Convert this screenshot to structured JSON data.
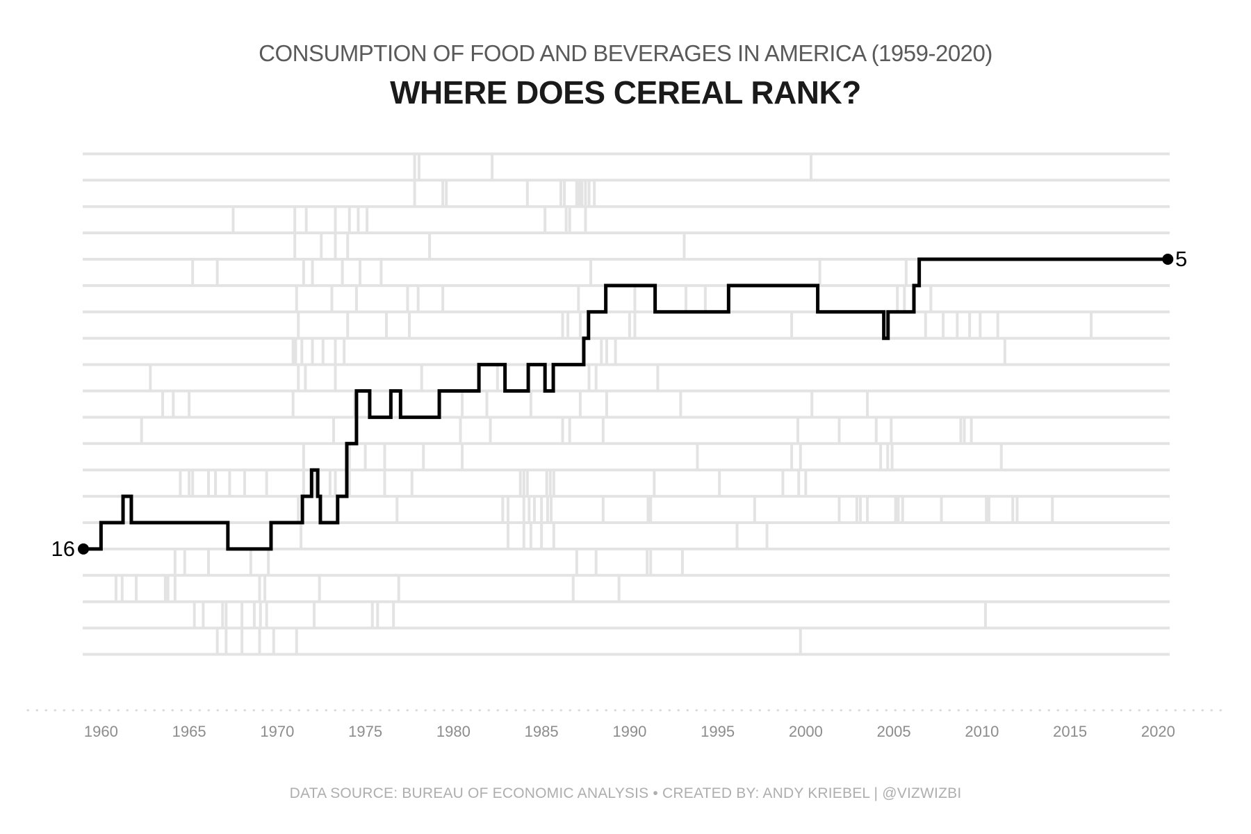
{
  "header": {
    "title": "CONSUMPTION OF FOOD AND BEVERAGES IN AMERICA (1959-2020)",
    "subtitle": "WHERE DOES CEREAL RANK?"
  },
  "footer": {
    "credit": "DATA SOURCE: BUREAU OF ECONOMIC ANALYSIS  •  CREATED BY: ANDY KRIEBEL | @VIZWIZBI"
  },
  "chart_data": {
    "type": "line",
    "subtype": "step-rank-bump",
    "title": "CONSUMPTION OF FOOD AND BEVERAGES IN AMERICA (1959-2020)",
    "subtitle": "WHERE DOES CEREAL RANK?",
    "xlabel": "",
    "ylabel": "rank (1 = top, hidden axis)",
    "x_axis": {
      "range": [
        1958.95,
        2021.1
      ],
      "ticks": [
        1960,
        1965,
        1970,
        1975,
        1980,
        1985,
        1990,
        1995,
        2000,
        2005,
        2010,
        2015,
        2020
      ],
      "dotted_baseline": true
    },
    "y_axis": {
      "type": "rank",
      "min": 1,
      "max": 20,
      "inverted": true,
      "labels_hidden": true,
      "gridlines": true
    },
    "legend": "none",
    "series": [
      {
        "name": "Cereal",
        "color": "#000000",
        "start_year": 1959,
        "start_rank": 16,
        "start_label": "16",
        "end_year": 2020.55,
        "end_rank": 5,
        "end_label": "5",
        "breakpoints": [
          [
            1959.0,
            16
          ],
          [
            1960.0,
            15
          ],
          [
            1961.25,
            14
          ],
          [
            1961.72,
            15
          ],
          [
            1967.2,
            16
          ],
          [
            1969.65,
            15
          ],
          [
            1971.43,
            14
          ],
          [
            1971.95,
            13
          ],
          [
            1972.3,
            14
          ],
          [
            1972.45,
            15
          ],
          [
            1973.43,
            14
          ],
          [
            1973.95,
            12
          ],
          [
            1974.5,
            10
          ],
          [
            1975.25,
            11
          ],
          [
            1976.45,
            10
          ],
          [
            1977.0,
            11
          ],
          [
            1979.2,
            10
          ],
          [
            1981.45,
            9
          ],
          [
            1982.93,
            10
          ],
          [
            1984.25,
            9
          ],
          [
            1985.2,
            10
          ],
          [
            1985.67,
            9
          ],
          [
            1987.4,
            8
          ],
          [
            1987.67,
            7
          ],
          [
            1988.65,
            6
          ],
          [
            1991.45,
            7
          ],
          [
            1995.62,
            6
          ],
          [
            2000.68,
            7
          ],
          [
            2004.43,
            8
          ],
          [
            2004.67,
            7
          ],
          [
            2006.14,
            6
          ],
          [
            2006.44,
            5
          ]
        ]
      }
    ],
    "background": {
      "description": "anonymous gray rank lattice of other food/beverage categories",
      "rows": 20,
      "verticals": [
        [
          1977.8,
          1
        ],
        [
          1978.05,
          1
        ],
        [
          1982.2,
          1
        ],
        [
          2000.3,
          1
        ],
        [
          1977.8,
          2
        ],
        [
          1979.4,
          2
        ],
        [
          1979.6,
          2
        ],
        [
          1984.2,
          2
        ],
        [
          1986.1,
          2
        ],
        [
          1986.3,
          2
        ],
        [
          1987.0,
          2
        ],
        [
          1987.15,
          2
        ],
        [
          1987.3,
          2
        ],
        [
          1987.5,
          2
        ],
        [
          1987.7,
          2
        ],
        [
          1988.0,
          2
        ],
        [
          1967.5,
          3
        ],
        [
          1971.0,
          3
        ],
        [
          1971.65,
          3
        ],
        [
          1973.3,
          3
        ],
        [
          1974.1,
          3
        ],
        [
          1974.6,
          3
        ],
        [
          1975.1,
          3
        ],
        [
          1985.2,
          3
        ],
        [
          1986.4,
          3
        ],
        [
          1986.6,
          3
        ],
        [
          1987.5,
          3
        ],
        [
          1971.0,
          4
        ],
        [
          1972.5,
          4
        ],
        [
          1973.3,
          4
        ],
        [
          1974.0,
          4
        ],
        [
          1978.65,
          4
        ],
        [
          1993.1,
          4
        ],
        [
          1965.2,
          5
        ],
        [
          1966.6,
          5
        ],
        [
          1971.5,
          5
        ],
        [
          1972.0,
          5
        ],
        [
          1973.7,
          5
        ],
        [
          1974.7,
          5
        ],
        [
          1975.9,
          5
        ],
        [
          1987.8,
          5
        ],
        [
          2000.8,
          5
        ],
        [
          2005.7,
          5
        ],
        [
          1971.1,
          6
        ],
        [
          1973.1,
          6
        ],
        [
          1974.5,
          6
        ],
        [
          1977.4,
          6
        ],
        [
          1978.0,
          6
        ],
        [
          1979.4,
          6
        ],
        [
          1987.1,
          6
        ],
        [
          1990.3,
          6
        ],
        [
          1993.2,
          6
        ],
        [
          1994.3,
          6
        ],
        [
          2005.2,
          6
        ],
        [
          2005.6,
          6
        ],
        [
          2007.1,
          6
        ],
        [
          1971.2,
          7
        ],
        [
          1974.0,
          7
        ],
        [
          1976.2,
          7
        ],
        [
          1977.5,
          7
        ],
        [
          1986.2,
          7
        ],
        [
          1986.5,
          7
        ],
        [
          1987.2,
          7
        ],
        [
          1990.0,
          7
        ],
        [
          1990.3,
          7
        ],
        [
          1999.2,
          7
        ],
        [
          2006.8,
          7
        ],
        [
          2007.8,
          7
        ],
        [
          2008.6,
          7
        ],
        [
          2009.3,
          7
        ],
        [
          2009.9,
          7
        ],
        [
          2010.9,
          7
        ],
        [
          2016.2,
          7
        ],
        [
          1970.9,
          8
        ],
        [
          1971.05,
          8
        ],
        [
          1971.4,
          8
        ],
        [
          1972.0,
          8
        ],
        [
          1972.6,
          8
        ],
        [
          1973.3,
          8
        ],
        [
          1973.8,
          8
        ],
        [
          1988.4,
          8
        ],
        [
          1988.7,
          8
        ],
        [
          1989.2,
          8
        ],
        [
          2011.3,
          8
        ],
        [
          1962.8,
          9
        ],
        [
          1971.2,
          9
        ],
        [
          1971.6,
          9
        ],
        [
          1973.3,
          9
        ],
        [
          1978.2,
          9
        ],
        [
          1982.5,
          9
        ],
        [
          1987.7,
          9
        ],
        [
          1988.1,
          9
        ],
        [
          1991.6,
          9
        ],
        [
          1963.5,
          10
        ],
        [
          1964.1,
          10
        ],
        [
          1965.0,
          10
        ],
        [
          1970.9,
          10
        ],
        [
          1974.4,
          10
        ],
        [
          1980.5,
          10
        ],
        [
          1981.9,
          10
        ],
        [
          1984.4,
          10
        ],
        [
          1987.2,
          10
        ],
        [
          1988.7,
          10
        ],
        [
          1992.9,
          10
        ],
        [
          2000.35,
          10
        ],
        [
          2003.5,
          10
        ],
        [
          1962.3,
          11
        ],
        [
          1973.2,
          11
        ],
        [
          1980.4,
          11
        ],
        [
          1982.1,
          11
        ],
        [
          1986.2,
          11
        ],
        [
          1986.6,
          11
        ],
        [
          1988.5,
          11
        ],
        [
          1999.55,
          11
        ],
        [
          2001.9,
          11
        ],
        [
          2004.0,
          11
        ],
        [
          2004.85,
          11
        ],
        [
          2008.8,
          11
        ],
        [
          2009.0,
          11
        ],
        [
          2009.4,
          11
        ],
        [
          1971.5,
          12
        ],
        [
          1974.1,
          12
        ],
        [
          1975.0,
          12
        ],
        [
          1976.1,
          12
        ],
        [
          1978.3,
          12
        ],
        [
          1980.5,
          12
        ],
        [
          1993.85,
          12
        ],
        [
          1999.2,
          12
        ],
        [
          1999.7,
          12
        ],
        [
          2004.25,
          12
        ],
        [
          2004.65,
          12
        ],
        [
          2004.9,
          12
        ],
        [
          2011.1,
          12
        ],
        [
          1964.5,
          13
        ],
        [
          1965.0,
          13
        ],
        [
          1965.2,
          13
        ],
        [
          1966.1,
          13
        ],
        [
          1966.5,
          13
        ],
        [
          1967.3,
          13
        ],
        [
          1968.15,
          13
        ],
        [
          1969.4,
          13
        ],
        [
          1971.5,
          13
        ],
        [
          1972.1,
          13
        ],
        [
          1973.0,
          13
        ],
        [
          1973.3,
          13
        ],
        [
          1974.1,
          13
        ],
        [
          1976.1,
          13
        ],
        [
          1977.65,
          13
        ],
        [
          1983.8,
          13
        ],
        [
          1984.0,
          13
        ],
        [
          1984.2,
          13
        ],
        [
          1985.3,
          13
        ],
        [
          1985.5,
          13
        ],
        [
          1985.7,
          13
        ],
        [
          1991.4,
          13
        ],
        [
          1995.1,
          13
        ],
        [
          1998.7,
          13
        ],
        [
          1999.6,
          13
        ],
        [
          2000.0,
          13
        ],
        [
          1971.2,
          14
        ],
        [
          1976.8,
          14
        ],
        [
          1982.8,
          14
        ],
        [
          1983.1,
          14
        ],
        [
          1984.0,
          14
        ],
        [
          1984.3,
          14
        ],
        [
          1984.6,
          14
        ],
        [
          1985.0,
          14
        ],
        [
          1985.35,
          14
        ],
        [
          1985.55,
          14
        ],
        [
          1988.5,
          14
        ],
        [
          1991.05,
          14
        ],
        [
          1991.2,
          14
        ],
        [
          1997.1,
          14
        ],
        [
          2001.9,
          14
        ],
        [
          2002.9,
          14
        ],
        [
          2003.1,
          14
        ],
        [
          2003.5,
          14
        ],
        [
          2005.1,
          14
        ],
        [
          2005.25,
          14
        ],
        [
          2005.5,
          14
        ],
        [
          2007.7,
          14
        ],
        [
          2010.25,
          14
        ],
        [
          2010.4,
          14
        ],
        [
          2011.75,
          14
        ],
        [
          2012.0,
          14
        ],
        [
          2014.0,
          14
        ],
        [
          1971.35,
          15
        ],
        [
          1983.1,
          15
        ],
        [
          1984.0,
          15
        ],
        [
          1984.4,
          15
        ],
        [
          1985.0,
          15
        ],
        [
          1985.7,
          15
        ],
        [
          1996.1,
          15
        ],
        [
          1997.8,
          15
        ],
        [
          1964.2,
          16
        ],
        [
          1964.75,
          16
        ],
        [
          1966.1,
          16
        ],
        [
          1968.5,
          16
        ],
        [
          1969.5,
          16
        ],
        [
          1987.0,
          16
        ],
        [
          1988.1,
          16
        ],
        [
          1991.0,
          16
        ],
        [
          1991.2,
          16
        ],
        [
          1993.0,
          16
        ],
        [
          1960.85,
          17
        ],
        [
          1961.2,
          17
        ],
        [
          1962.0,
          17
        ],
        [
          1963.65,
          17
        ],
        [
          1963.8,
          17
        ],
        [
          1964.2,
          17
        ],
        [
          1969.0,
          17
        ],
        [
          1969.3,
          17
        ],
        [
          1972.4,
          17
        ],
        [
          1976.9,
          17
        ],
        [
          1986.8,
          17
        ],
        [
          1989.4,
          17
        ],
        [
          1965.3,
          18
        ],
        [
          1965.8,
          18
        ],
        [
          1966.9,
          18
        ],
        [
          1967.1,
          18
        ],
        [
          1968.0,
          18
        ],
        [
          1968.7,
          18
        ],
        [
          1969.05,
          18
        ],
        [
          1969.4,
          18
        ],
        [
          1972.1,
          18
        ],
        [
          1975.4,
          18
        ],
        [
          1975.7,
          18
        ],
        [
          1976.6,
          18
        ],
        [
          2010.2,
          18
        ],
        [
          1966.6,
          19
        ],
        [
          1967.1,
          19
        ],
        [
          1968.0,
          19
        ],
        [
          1969.0,
          19
        ],
        [
          1969.8,
          19
        ],
        [
          1971.1,
          19
        ],
        [
          1999.7,
          19
        ]
      ]
    },
    "colors": {
      "series_line": "#000000",
      "grid": "#e3e3e3",
      "axis_dots": "#d9d9d9",
      "tick_label": "#8c8c8c",
      "title": "#5a5a5a",
      "subtitle": "#1a1a1a",
      "footer": "#aeaeae"
    }
  }
}
